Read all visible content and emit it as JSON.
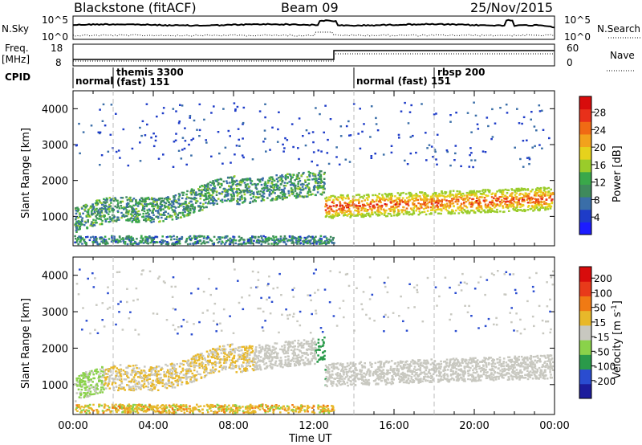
{
  "header": {
    "station": "Blackstone (fitACF)",
    "beam": "Beam 09",
    "date": "25/Nov/2015"
  },
  "summary_panels": {
    "nsky_label": "N.Sky",
    "nsky_ticks": [
      "10^5",
      "10^0"
    ],
    "nsearch_label": "N.Search",
    "nsearch_ticks": [
      "10^5",
      "10^0"
    ],
    "freq_label": "Freq.",
    "freq_unit": "[MHz]",
    "freq_ticks": [
      "18",
      "8"
    ],
    "nave_label": "Nave",
    "nave_ticks": [
      "60",
      "0"
    ],
    "cpid_label": "CPID",
    "cpid_segments": [
      {
        "label": "normal",
        "start_hour": 0
      },
      {
        "label": "themis 3300\n(fast) 151",
        "start_hour": 2
      },
      {
        "label": "normal (fast) 151",
        "start_hour": 14
      },
      {
        "label": "rbsp 200",
        "start_hour": 18
      }
    ],
    "freq_step_hour": 13.0
  },
  "chart_data": [
    {
      "type": "heatmap",
      "panel": "power",
      "xlabel": "",
      "ylabel": "Slant Range [km]",
      "xlim": [
        0,
        24
      ],
      "ylim": [
        180,
        4500
      ],
      "yticks": [
        1000,
        2000,
        3000,
        4000
      ],
      "colorbar_label": "Power [dB]",
      "colorbar_ticks": [
        "4",
        "8",
        "12",
        "16",
        "20",
        "24",
        "28"
      ],
      "colorbar_colors": [
        "#1c1cff",
        "#1e3cc8",
        "#3a6ea8",
        "#3f8a5c",
        "#3aa84a",
        "#9acc2a",
        "#e6d21c",
        "#f2a21c",
        "#f06a14",
        "#e8301a",
        "#d80c0c"
      ]
    },
    {
      "type": "heatmap",
      "panel": "velocity",
      "xlabel": "Time UT",
      "ylabel": "Slant Range [km]",
      "xlim": [
        0,
        24
      ],
      "ylim": [
        180,
        4500
      ],
      "yticks": [
        1000,
        2000,
        3000,
        4000
      ],
      "xticks": [
        "00:00",
        "04:00",
        "08:00",
        "12:00",
        "16:00",
        "20:00",
        "00:00"
      ],
      "colorbar_label": "Velocity [m s^-1]",
      "colorbar_ticks": [
        "200",
        "100",
        "50",
        "15",
        "-15",
        "-50",
        "-100",
        "-200"
      ],
      "colorbar_colors": [
        "#1c1c9c",
        "#2a4cd0",
        "#2a9a4a",
        "#8ad24a",
        "#c8c8c0",
        "#e8b82a",
        "#f07a14",
        "#e83a1a",
        "#d80c0c"
      ]
    }
  ]
}
